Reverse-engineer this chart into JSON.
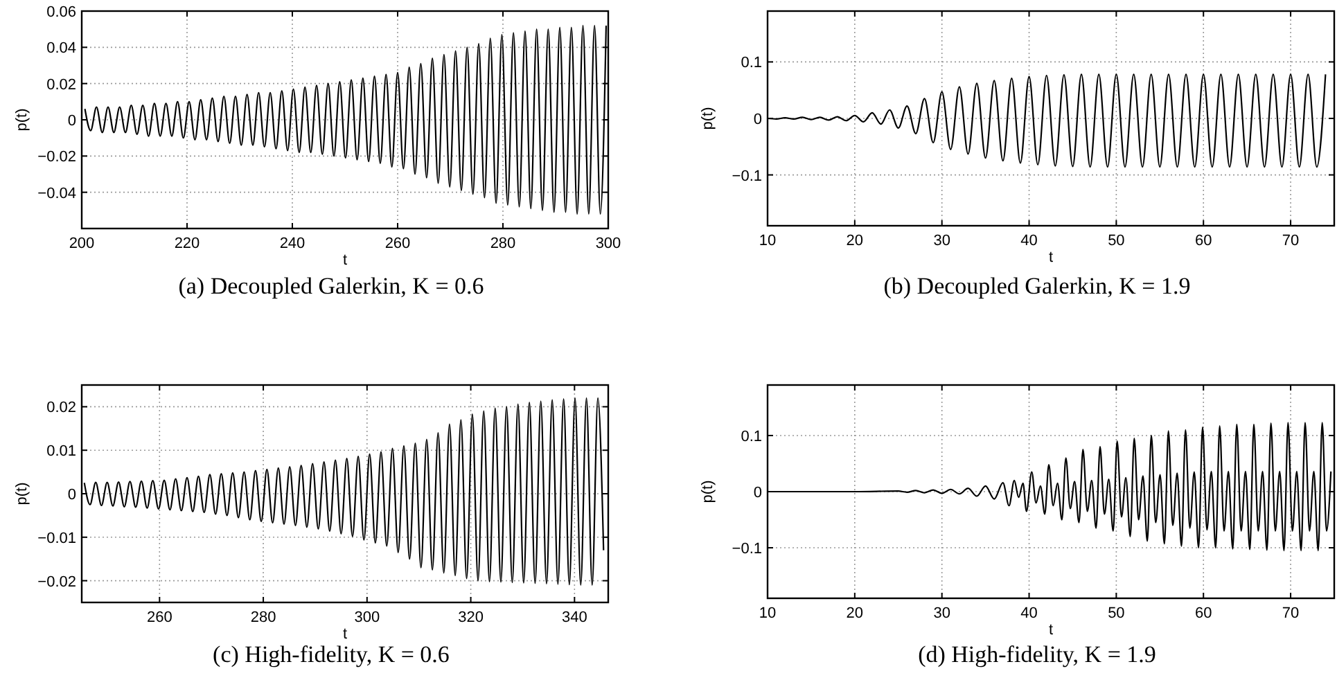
{
  "chart_data": [
    {
      "type": "line",
      "title": "(a) Decoupled Galerkin, K = 0.6",
      "xlabel": "t",
      "ylabel": "p(t)",
      "xlim": [
        200,
        300
      ],
      "ylim": [
        -0.06,
        0.06
      ],
      "xticks": [
        200,
        220,
        240,
        260,
        280,
        300
      ],
      "yticks": [
        {
          "value": -0.04,
          "label": "−0.04"
        },
        {
          "value": -0.02,
          "label": "−0.02"
        },
        0,
        0.02,
        0.04,
        0.06
      ],
      "grid": true,
      "series": [
        {
          "color": "#000000",
          "x": [
            200.6,
            201.7,
            202.8,
            203.9,
            205,
            206.1,
            207.2,
            208.3,
            209.4,
            210.5,
            211.6,
            212.7,
            213.8,
            214.9,
            216,
            217.1,
            218.2,
            219.3,
            220.4,
            221.5,
            222.6,
            223.7,
            224.8,
            225.9,
            227,
            228.1,
            229.2,
            230.3,
            231.4,
            232.5,
            233.6,
            234.7,
            235.8,
            236.9,
            238,
            239.1,
            240.2,
            241.3,
            242.4,
            243.5,
            244.6,
            245.7,
            246.8,
            247.9,
            249,
            250.1,
            251.2,
            252.3,
            253.4,
            254.5,
            255.6,
            256.7,
            257.8,
            258.9,
            260,
            261.1,
            262.2,
            263.3,
            264.4,
            265.5,
            266.6,
            267.7,
            268.8,
            269.9,
            271,
            272.1,
            273.2,
            274.3,
            275.4,
            276.5,
            277.6,
            278.7,
            279.8,
            280.9,
            282,
            283.1,
            284.2,
            285.3,
            286.4,
            287.5,
            288.6,
            289.7,
            290.8,
            291.9,
            293,
            294.1,
            295.2,
            296.3,
            297.4,
            298.5,
            299.6
          ],
          "values": [
            0.006,
            -0.006,
            0.007,
            -0.007,
            0.007,
            -0.007,
            0.007,
            -0.007,
            0.008,
            -0.008,
            0.008,
            -0.009,
            0.009,
            -0.009,
            0.009,
            -0.009,
            0.01,
            -0.01,
            0.01,
            -0.011,
            0.011,
            -0.011,
            0.012,
            -0.012,
            0.013,
            -0.013,
            0.013,
            -0.014,
            0.014,
            -0.014,
            0.015,
            -0.015,
            0.015,
            -0.016,
            0.016,
            -0.017,
            0.017,
            -0.018,
            0.018,
            -0.018,
            0.019,
            -0.019,
            0.02,
            -0.02,
            0.021,
            -0.021,
            0.022,
            -0.022,
            0.023,
            -0.023,
            0.024,
            -0.024,
            0.025,
            -0.026,
            0.026,
            -0.027,
            0.029,
            -0.03,
            0.031,
            -0.032,
            0.034,
            -0.035,
            0.036,
            -0.037,
            0.038,
            -0.039,
            0.04,
            -0.041,
            0.042,
            -0.043,
            0.045,
            -0.046,
            0.047,
            -0.047,
            0.048,
            -0.048,
            0.049,
            -0.049,
            0.05,
            -0.05,
            0.05,
            -0.051,
            0.051,
            -0.051,
            0.051,
            -0.052,
            0.052,
            -0.052,
            0.052,
            -0.052,
            0.052
          ]
        }
      ]
    },
    {
      "type": "line",
      "title": "(b) Decoupled Galerkin, K = 1.9",
      "xlabel": "t",
      "ylabel": "p(t)",
      "xlim": [
        10,
        75
      ],
      "ylim": [
        -0.19,
        0.19
      ],
      "xticks": [
        10,
        20,
        30,
        40,
        50,
        60,
        70
      ],
      "yticks": [
        {
          "value": -0.1,
          "label": "−0.1"
        },
        0,
        0.1
      ],
      "grid": true,
      "series": [
        {
          "color": "#000000",
          "x": [
            10,
            11,
            12,
            13,
            14,
            15,
            16,
            17,
            18,
            19,
            20,
            21,
            22,
            23,
            24,
            25,
            26,
            27,
            28,
            29,
            30,
            31,
            32,
            33,
            34,
            35,
            36,
            37,
            38,
            39,
            40,
            41,
            42,
            43,
            44,
            45,
            46,
            47,
            48,
            49,
            50,
            51,
            52,
            53,
            54,
            55,
            56,
            57,
            58,
            59,
            60,
            61,
            62,
            63,
            64,
            65,
            66,
            67,
            68,
            69,
            70,
            71,
            72,
            73,
            74
          ],
          "values": [
            0,
            -0.001,
            0.001,
            -0.001,
            0.002,
            -0.002,
            0.002,
            -0.003,
            0.003,
            -0.004,
            0.005,
            -0.006,
            0.01,
            -0.01,
            0.015,
            -0.017,
            0.022,
            -0.027,
            0.035,
            -0.043,
            0.047,
            -0.055,
            0.056,
            -0.063,
            0.062,
            -0.07,
            0.067,
            -0.075,
            0.071,
            -0.079,
            0.074,
            -0.082,
            0.076,
            -0.084,
            0.077,
            -0.085,
            0.078,
            -0.086,
            0.078,
            -0.086,
            0.078,
            -0.086,
            0.078,
            -0.086,
            0.078,
            -0.086,
            0.078,
            -0.086,
            0.078,
            -0.086,
            0.078,
            -0.086,
            0.078,
            -0.086,
            0.078,
            -0.086,
            0.078,
            -0.086,
            0.078,
            -0.086,
            0.078,
            -0.086,
            0.078,
            -0.086,
            0.078
          ]
        }
      ]
    },
    {
      "type": "line",
      "title": "(c) High-fidelity, K = 0.6",
      "xlabel": "t",
      "ylabel": "p(t)",
      "xlim": [
        245,
        346.5
      ],
      "ylim": [
        -0.025,
        0.025
      ],
      "xticks": [
        260,
        280,
        300,
        320,
        340
      ],
      "yticks": [
        {
          "value": -0.02,
          "label": "−0.02"
        },
        {
          "value": -0.01,
          "label": "−0.01"
        },
        0,
        0.01,
        0.02
      ],
      "grid": true,
      "series": [
        {
          "color": "#000000",
          "x": [
            245.5,
            246.6,
            247.7,
            248.8,
            249.9,
            251,
            252.1,
            253.2,
            254.3,
            255.4,
            256.5,
            257.6,
            258.7,
            259.8,
            260.9,
            262,
            263.1,
            264.2,
            265.3,
            266.4,
            267.5,
            268.6,
            269.7,
            270.8,
            271.9,
            273,
            274.1,
            275.2,
            276.3,
            277.4,
            278.5,
            279.6,
            280.7,
            281.8,
            282.9,
            284,
            285.1,
            286.2,
            287.3,
            288.4,
            289.5,
            290.6,
            291.7,
            292.8,
            293.9,
            295,
            296.1,
            297.2,
            298.3,
            299.4,
            300.5,
            301.6,
            302.7,
            303.8,
            304.9,
            306,
            307.1,
            308.2,
            309.3,
            310.4,
            311.5,
            312.6,
            313.7,
            314.8,
            315.9,
            317,
            318.1,
            319.2,
            320.3,
            321.4,
            322.5,
            323.6,
            324.7,
            325.8,
            326.9,
            328,
            329.1,
            330.2,
            331.3,
            332.4,
            333.5,
            334.6,
            335.7,
            336.8,
            337.9,
            339,
            340.1,
            341.2,
            342.3,
            343.4,
            344.5,
            345.6
          ],
          "values": [
            0.0025,
            -0.0025,
            0.0026,
            -0.0027,
            0.0026,
            -0.0028,
            0.0027,
            -0.003,
            0.0028,
            -0.0031,
            0.0029,
            -0.0033,
            0.003,
            -0.0035,
            0.0031,
            -0.0037,
            0.0034,
            -0.0039,
            0.0037,
            -0.0041,
            0.004,
            -0.0043,
            0.0044,
            -0.0047,
            0.0046,
            -0.005,
            0.0048,
            -0.0055,
            0.005,
            -0.006,
            0.0053,
            -0.0064,
            0.0056,
            -0.0067,
            0.0059,
            -0.007,
            0.0062,
            -0.0073,
            0.0065,
            -0.0077,
            0.0069,
            -0.0081,
            0.0073,
            -0.0086,
            0.0077,
            -0.0092,
            0.0081,
            -0.0098,
            0.0086,
            -0.0106,
            0.0091,
            -0.0113,
            0.0096,
            -0.012,
            0.0104,
            -0.0135,
            0.011,
            -0.015,
            0.0116,
            -0.017,
            0.0125,
            -0.0175,
            0.014,
            -0.0182,
            0.016,
            -0.0188,
            0.017,
            -0.0195,
            0.0183,
            -0.02,
            0.019,
            -0.0202,
            0.0197,
            -0.0203,
            0.02,
            -0.0204,
            0.0206,
            -0.0205,
            0.021,
            -0.0206,
            0.0213,
            -0.0207,
            0.0216,
            -0.0208,
            0.0218,
            -0.0209,
            0.022,
            -0.021,
            0.022,
            -0.021,
            0.022,
            -0.013
          ]
        }
      ]
    },
    {
      "type": "line",
      "title": "(d) High-fidelity, K = 1.9",
      "xlabel": "t",
      "ylabel": "p(t)",
      "xlim": [
        10,
        75
      ],
      "ylim": [
        -0.19,
        0.19
      ],
      "xticks": [
        10,
        20,
        30,
        40,
        50,
        60,
        70
      ],
      "yticks": [
        {
          "value": -0.1,
          "label": "−0.1"
        },
        0,
        0.1
      ],
      "grid": true,
      "series": [
        {
          "color": "#000000",
          "x": [
            10,
            20,
            25,
            26,
            27,
            28,
            29,
            30,
            31,
            32,
            33,
            34,
            35,
            36,
            37,
            37.7,
            38.3,
            38.8,
            39.3,
            39.7,
            40.3,
            40.8,
            41.3,
            41.8,
            42.26,
            42.76,
            43.26,
            43.76,
            44.22,
            44.72,
            45.22,
            45.72,
            46.18,
            46.68,
            47.18,
            47.68,
            48.14,
            48.64,
            49.14,
            49.64,
            50.1,
            50.6,
            51.1,
            51.6,
            52.06,
            52.56,
            53.06,
            53.56,
            54.02,
            54.52,
            55.02,
            55.52,
            55.98,
            56.48,
            56.98,
            57.48,
            57.94,
            58.44,
            58.94,
            59.44,
            59.9,
            60.4,
            60.9,
            61.4,
            61.86,
            62.36,
            62.86,
            63.36,
            63.82,
            64.32,
            64.82,
            65.32,
            65.78,
            66.28,
            66.78,
            67.28,
            67.74,
            68.24,
            68.74,
            69.24,
            69.7,
            70.2,
            70.7,
            71.2,
            71.66,
            72.16,
            72.66,
            73.16,
            73.62,
            74.12,
            74.62
          ],
          "values": [
            0,
            0,
            0.001,
            -0.001,
            0.002,
            -0.002,
            0.003,
            -0.003,
            0.004,
            -0.004,
            0.006,
            -0.008,
            0.01,
            -0.013,
            0.016,
            -0.025,
            0.02,
            -0.01,
            0.015,
            -0.035,
            0.035,
            -0.02,
            0.01,
            -0.04,
            0.048,
            -0.025,
            0.015,
            -0.05,
            0.06,
            -0.03,
            0.018,
            -0.055,
            0.075,
            -0.035,
            0.02,
            -0.065,
            0.08,
            -0.04,
            0.022,
            -0.07,
            0.09,
            -0.045,
            0.025,
            -0.08,
            0.095,
            -0.05,
            0.028,
            -0.088,
            0.1,
            -0.055,
            0.03,
            -0.093,
            0.108,
            -0.06,
            0.033,
            -0.097,
            0.11,
            -0.065,
            0.035,
            -0.1,
            0.115,
            -0.068,
            0.036,
            -0.1,
            0.117,
            -0.07,
            0.036,
            -0.102,
            0.12,
            -0.07,
            0.036,
            -0.103,
            0.12,
            -0.07,
            0.036,
            -0.104,
            0.122,
            -0.07,
            0.036,
            -0.105,
            0.123,
            -0.07,
            0.036,
            -0.105,
            0.123,
            -0.07,
            0.036,
            -0.105,
            0.123,
            -0.07,
            0.036
          ]
        }
      ]
    }
  ]
}
